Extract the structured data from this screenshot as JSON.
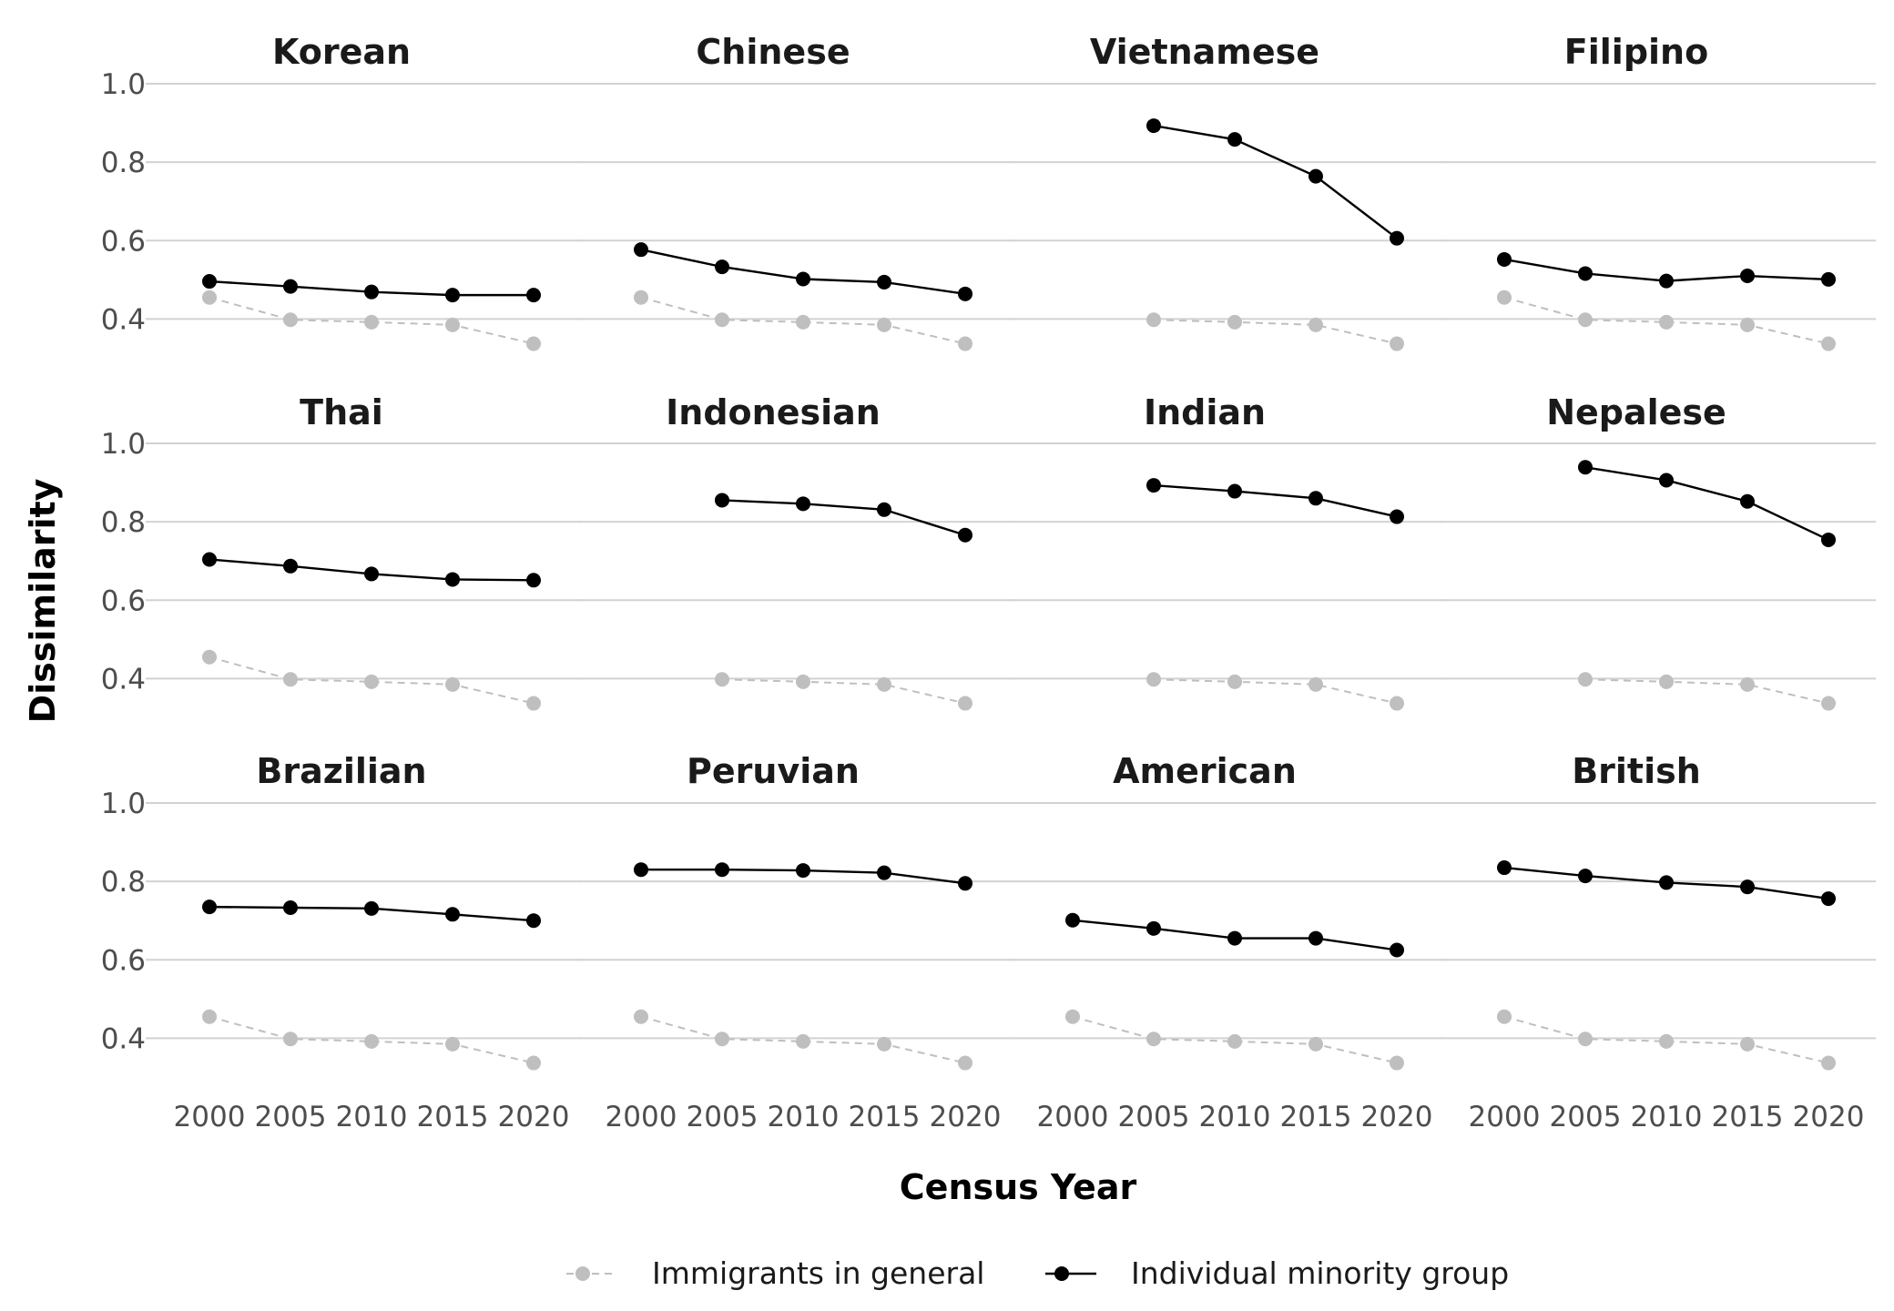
{
  "chart_data": {
    "type": "line",
    "layout": "small-multiples 3x4",
    "xlabel": "Census Year",
    "ylabel": "Dissimilarity",
    "x": [
      2000,
      2005,
      2010,
      2015,
      2020
    ],
    "x_ticks": [
      "2000",
      "2005",
      "2010",
      "2015",
      "2020"
    ],
    "ylim": [
      0.3,
      1.05
    ],
    "y_ticks": [
      "1.0",
      "0.8",
      "0.6",
      "0.4"
    ],
    "y_tick_values": [
      1.0,
      0.8,
      0.6,
      0.4
    ],
    "grid": "horizontal major lines only",
    "legend_position": "bottom",
    "legend": [
      {
        "label": "Immigrants in general",
        "color": "#bfbfbf",
        "line_style": "dashed"
      },
      {
        "label": "Individual minority group",
        "color": "#000000",
        "line_style": "solid"
      }
    ],
    "panels": [
      {
        "title": "Korean",
        "general": [
          0.455,
          0.398,
          0.392,
          0.385,
          0.337
        ],
        "group": [
          0.496,
          0.483,
          0.469,
          0.461,
          0.461
        ]
      },
      {
        "title": "Chinese",
        "general": [
          0.455,
          0.398,
          0.392,
          0.385,
          0.337
        ],
        "group": [
          0.577,
          0.533,
          0.502,
          0.494,
          0.464
        ]
      },
      {
        "title": "Vietnamese",
        "general": [
          null,
          0.398,
          0.392,
          0.385,
          0.337
        ],
        "group": [
          null,
          0.893,
          0.858,
          0.764,
          0.606
        ]
      },
      {
        "title": "Filipino",
        "general": [
          0.455,
          0.398,
          0.392,
          0.385,
          0.337
        ],
        "group": [
          0.552,
          0.516,
          0.497,
          0.51,
          0.501
        ]
      },
      {
        "title": "Thai",
        "general": [
          0.455,
          0.398,
          0.392,
          0.385,
          0.337
        ],
        "group": [
          0.704,
          0.687,
          0.667,
          0.653,
          0.651
        ]
      },
      {
        "title": "Indonesian",
        "general": [
          null,
          0.398,
          0.392,
          0.385,
          0.337
        ],
        "group": [
          null,
          0.855,
          0.846,
          0.831,
          0.766
        ]
      },
      {
        "title": "Indian",
        "general": [
          null,
          0.398,
          0.392,
          0.385,
          0.337
        ],
        "group": [
          null,
          0.893,
          0.878,
          0.86,
          0.813
        ]
      },
      {
        "title": "Nepalese",
        "general": [
          null,
          0.398,
          0.392,
          0.385,
          0.337
        ],
        "group": [
          null,
          0.939,
          0.906,
          0.852,
          0.754
        ]
      },
      {
        "title": "Brazilian",
        "general": [
          0.455,
          0.398,
          0.392,
          0.385,
          0.337
        ],
        "group": [
          0.735,
          0.733,
          0.731,
          0.716,
          0.7
        ]
      },
      {
        "title": "Peruvian",
        "general": [
          0.455,
          0.398,
          0.392,
          0.385,
          0.337
        ],
        "group": [
          0.83,
          0.83,
          0.828,
          0.822,
          0.795
        ]
      },
      {
        "title": "American",
        "general": [
          0.455,
          0.398,
          0.392,
          0.385,
          0.337
        ],
        "group": [
          0.701,
          0.68,
          0.655,
          0.655,
          0.625
        ]
      },
      {
        "title": "British",
        "general": [
          0.455,
          0.398,
          0.392,
          0.385,
          0.337
        ],
        "group": [
          0.835,
          0.814,
          0.797,
          0.786,
          0.756
        ]
      }
    ]
  }
}
